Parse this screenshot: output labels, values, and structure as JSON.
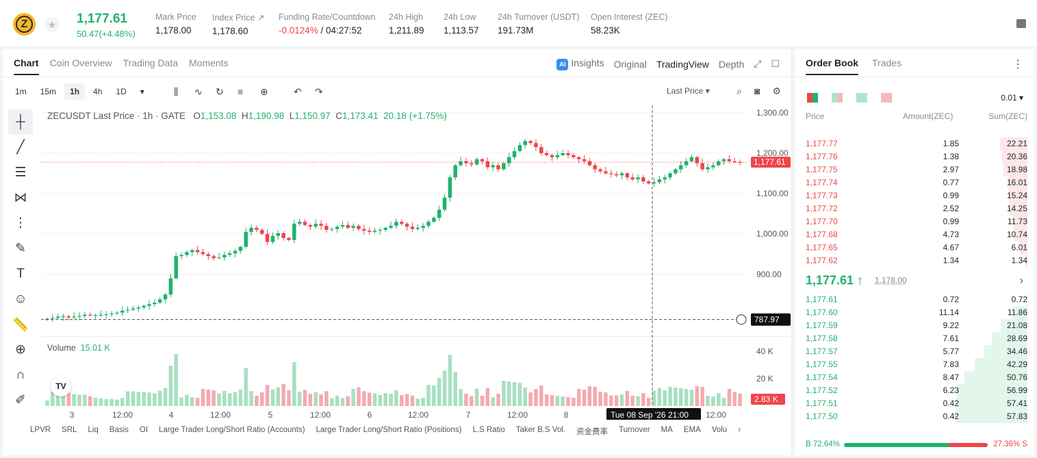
{
  "header": {
    "symbol_icon": "zec-coin-icon",
    "last_price": "1,177.61",
    "change": "50.47(+4.48%)",
    "stats": [
      {
        "label": "Mark Price",
        "value": "1,178.00"
      },
      {
        "label": "Index Price ↗",
        "value": "1,178.60"
      },
      {
        "label": "Funding Rate/Countdown",
        "value_neg": "-0.0124%",
        "value": " / 04:27:52"
      },
      {
        "label": "24h High",
        "value": "1,211.89"
      },
      {
        "label": "24h Low",
        "value": "1,113.57"
      },
      {
        "label": "24h Turnover (USDT)",
        "value": "191.73M"
      },
      {
        "label": "Open Interest (ZEC)",
        "value": "58.23K"
      }
    ]
  },
  "chart_tabs": [
    "Chart",
    "Coin Overview",
    "Trading Data",
    "Moments"
  ],
  "view_tabs": {
    "insights": "Insights",
    "ai_badge": "AI",
    "original": "Original",
    "tradingview": "TradingView",
    "depth": "Depth"
  },
  "timeframes": [
    "1m",
    "15m",
    "1h",
    "4h",
    "1D"
  ],
  "price_source": "Last Price",
  "legend": {
    "title": "ZECUSDT Last Price · 1h · GATE",
    "o_label": "O",
    "o": "1,153.08",
    "h_label": "H",
    "h": "1,190.98",
    "l_label": "L",
    "l": "1,150.97",
    "c_label": "C",
    "c": "1,173.41",
    "chg": "20.18 (+1.75%)"
  },
  "volume": {
    "label": "Volume",
    "value": "15.01 K"
  },
  "crosshair": {
    "time": "Tue 08 Sep '26  21:00",
    "price": "787.97"
  },
  "current_price_tag": "1,177.61",
  "volume_tag": "2.83 K",
  "indicators": [
    "LPVR",
    "SRL",
    "Liq",
    "Basis",
    "OI",
    "Large Trader Long/Short Ratio (Accounts)",
    "Large Trader Long/Short Ratio (Positions)",
    "L.S Ratio",
    "Taker B.S Vol.",
    "资金费率",
    "Turnover",
    "MA",
    "EMA",
    "Volu"
  ],
  "chart_data": {
    "type": "candlestick",
    "title": "ZECUSDT Last Price · 1h · GATE",
    "y_axis_ticks": [
      "1,300.00",
      "1,200.00",
      "1,100.00",
      "1,000.00",
      "900.00"
    ],
    "ylim": [
      760,
      1310
    ],
    "x_axis_ticks": [
      "3",
      "12:00",
      "4",
      "12:00",
      "5",
      "12:00",
      "6",
      "12:00",
      "7",
      "12:00",
      "8",
      "12:00"
    ],
    "volume_ticks": [
      "40 K",
      "20 K"
    ],
    "close_series": [
      790,
      792,
      795,
      796,
      793,
      795,
      797,
      800,
      798,
      799,
      800,
      801,
      803,
      805,
      810,
      812,
      815,
      818,
      822,
      826,
      830,
      838,
      850,
      890,
      945,
      948,
      955,
      960,
      955,
      950,
      945,
      940,
      942,
      948,
      952,
      958,
      968,
      1005,
      1015,
      1010,
      1000,
      980,
      995,
      1002,
      990,
      985,
      1025,
      1030,
      1022,
      1018,
      1025,
      1020,
      1010,
      1012,
      1018,
      1022,
      1015,
      1020,
      1012,
      1008,
      1005,
      1008,
      1010,
      1015,
      1020,
      1030,
      1025,
      1018,
      1012,
      1015,
      1020,
      1030,
      1040,
      1060,
      1090,
      1140,
      1170,
      1180,
      1175,
      1172,
      1185,
      1180,
      1165,
      1170,
      1160,
      1175,
      1190,
      1205,
      1220,
      1230,
      1225,
      1215,
      1200,
      1195,
      1190,
      1195,
      1200,
      1195,
      1190,
      1185,
      1180,
      1170,
      1160,
      1155,
      1150,
      1148,
      1145,
      1150,
      1140,
      1135,
      1140,
      1130,
      1125,
      1128,
      1135,
      1140,
      1150,
      1160,
      1170,
      1180,
      1190,
      1175,
      1160,
      1165,
      1170,
      1180,
      1185,
      1180,
      1178,
      1177
    ]
  },
  "orderbook": {
    "tabs": [
      "Order Book",
      "Trades"
    ],
    "precision": "0.01",
    "headers": [
      "Price",
      "Amount(ZEC)",
      "Sum(ZEC)"
    ],
    "asks": [
      {
        "p": "1,177.77",
        "a": "1.85",
        "s": "22.21",
        "w": 0.38
      },
      {
        "p": "1,177.76",
        "a": "1.38",
        "s": "20.36",
        "w": 0.35
      },
      {
        "p": "1,177.75",
        "a": "2.97",
        "s": "18.98",
        "w": 0.33
      },
      {
        "p": "1,177.74",
        "a": "0.77",
        "s": "16.01",
        "w": 0.28
      },
      {
        "p": "1,177.73",
        "a": "0.99",
        "s": "15.24",
        "w": 0.26
      },
      {
        "p": "1,177.72",
        "a": "2.52",
        "s": "14.25",
        "w": 0.25
      },
      {
        "p": "1,177.70",
        "a": "0.99",
        "s": "11.73",
        "w": 0.2
      },
      {
        "p": "1,177.68",
        "a": "4.73",
        "s": "10.74",
        "w": 0.19
      },
      {
        "p": "1,177.65",
        "a": "4.67",
        "s": "6.01",
        "w": 0.1
      },
      {
        "p": "1,177.62",
        "a": "1.34",
        "s": "1.34",
        "w": 0.03
      }
    ],
    "mid_price": "1,177.61 ↑",
    "mark": "1,178.00",
    "bids": [
      {
        "p": "1,177.61",
        "a": "0.72",
        "s": "0.72",
        "w": 0.02
      },
      {
        "p": "1,177.60",
        "a": "11.14",
        "s": "11.86",
        "w": 0.21
      },
      {
        "p": "1,177.59",
        "a": "9.22",
        "s": "21.08",
        "w": 0.37
      },
      {
        "p": "1,177.58",
        "a": "7.61",
        "s": "28.69",
        "w": 0.5
      },
      {
        "p": "1,177.57",
        "a": "5.77",
        "s": "34.46",
        "w": 0.6
      },
      {
        "p": "1,177.55",
        "a": "7.83",
        "s": "42.29",
        "w": 0.73
      },
      {
        "p": "1,177.54",
        "a": "8.47",
        "s": "50.76",
        "w": 0.88
      },
      {
        "p": "1,177.52",
        "a": "6.23",
        "s": "56.99",
        "w": 0.98
      },
      {
        "p": "1,177.51",
        "a": "0.42",
        "s": "57.41",
        "w": 0.99
      },
      {
        "p": "1,177.50",
        "a": "0.42",
        "s": "57.83",
        "w": 1.0
      }
    ],
    "buy_ratio": "B 72.64%",
    "sell_ratio": "27.36% S",
    "buy_fraction": 0.7264
  },
  "colors": {
    "up": "#20b26c",
    "down": "#ef454a"
  }
}
